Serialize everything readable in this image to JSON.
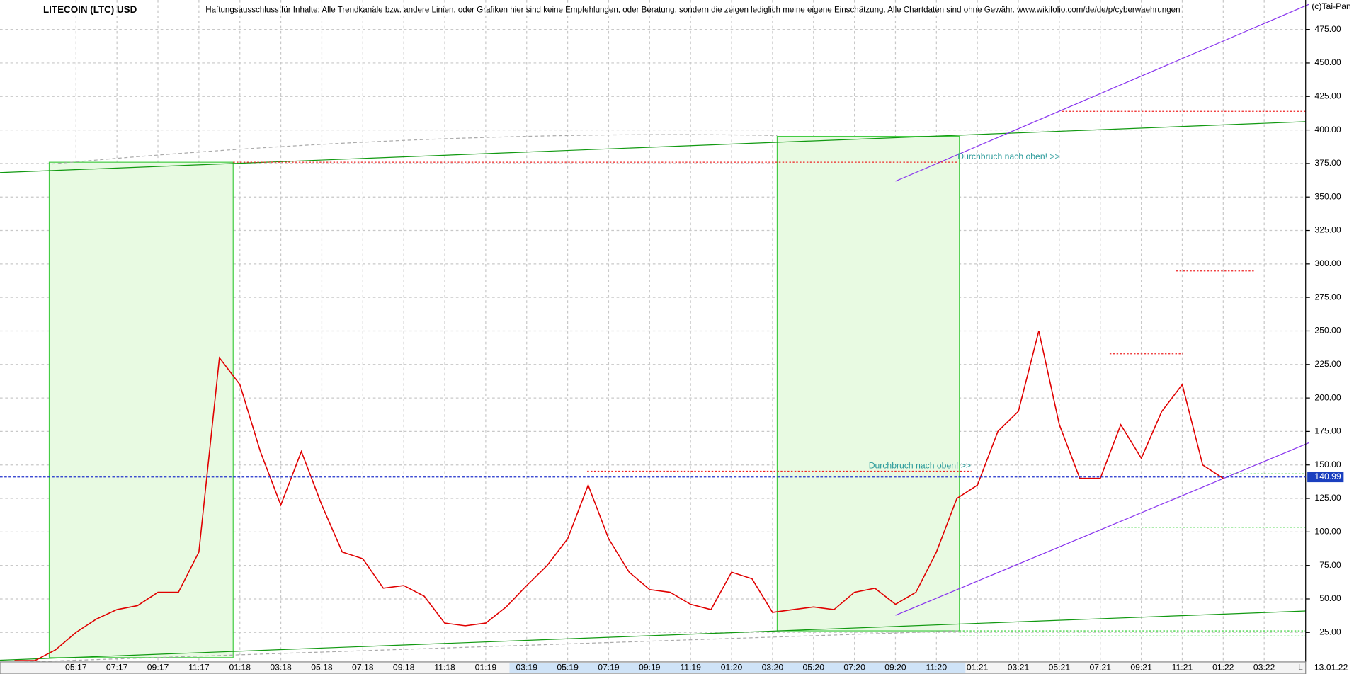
{
  "chart_data": {
    "type": "line",
    "title": "LITECOIN (LTC) USD",
    "subtitle": "Haftungsausschluss für Inhalte: Alle Trendkanäle bzw. andere Linien, oder Grafiken hier sind keine Empfehlungen, oder Beratung, sondern die zeigen lediglich meine eigene Einschätzung. Alle Chartdaten sind ohne Gewähr.  www.wikifolio.com/de/de/p/cyberwaehrungen",
    "copyright": "(c)Tai-Pan",
    "annotations": [
      "Durchbruch nach oben! >>",
      "Durchbruch nach oben! >>"
    ],
    "date_label": "13.01.22",
    "scale_label": "L",
    "last_price": 140.99,
    "color": "#e00000",
    "grid": true,
    "categories": [
      null,
      null,
      null,
      "05:17",
      null,
      "07:17",
      null,
      "09:17",
      null,
      "11:17",
      null,
      "01:18",
      null,
      "03:18",
      null,
      "05:18",
      null,
      "07:18",
      null,
      "09:18",
      null,
      "11:18",
      null,
      "01:19",
      null,
      "03:19",
      null,
      "05:19",
      null,
      "07:19",
      null,
      "09:19",
      null,
      "11:19",
      null,
      "01:20",
      null,
      "03:20",
      null,
      "05:20",
      null,
      "07:20",
      null,
      "09:20",
      null,
      "11:20",
      null,
      "01:21",
      null,
      "03:21",
      null,
      "05:21",
      null,
      "07:21",
      null,
      "09:21",
      null,
      "11:21",
      null,
      "01:22",
      null,
      "03:22"
    ],
    "values": [
      4,
      4,
      12,
      25,
      35,
      42,
      45,
      55,
      55,
      85,
      230,
      210,
      160,
      120,
      160,
      120,
      85,
      80,
      58,
      60,
      52,
      32,
      30,
      32,
      44,
      60,
      75,
      95,
      135,
      95,
      70,
      57,
      55,
      46,
      42,
      70,
      65,
      40,
      42,
      44,
      42,
      55,
      58,
      46,
      55,
      85,
      125,
      135,
      175,
      190,
      250,
      180,
      140,
      140,
      180,
      155,
      190,
      210,
      150,
      140,
      null,
      null
    ],
    "ylim": [
      3,
      497
    ],
    "yticks": [
      {
        "value": 25,
        "label": "25.00"
      },
      {
        "value": 50,
        "label": "50.00"
      },
      {
        "value": 75,
        "label": "75.00"
      },
      {
        "value": 100,
        "label": "100.00"
      },
      {
        "value": 125,
        "label": "125.00"
      },
      {
        "value": 150,
        "label": "150.00"
      },
      {
        "value": 175,
        "label": "175.00"
      },
      {
        "value": 200,
        "label": "200.00"
      },
      {
        "value": 225,
        "label": "225.00"
      },
      {
        "value": 250,
        "label": "250.00"
      },
      {
        "value": 275,
        "label": "275.00"
      },
      {
        "value": 300,
        "label": "300.00"
      },
      {
        "value": 325,
        "label": "325.00"
      },
      {
        "value": 350,
        "label": "350.00"
      },
      {
        "value": 375,
        "label": "375.00"
      },
      {
        "value": 400,
        "label": "400.00"
      },
      {
        "value": 425,
        "label": "425.00"
      },
      {
        "value": 450,
        "label": "450.00"
      },
      {
        "value": 475,
        "label": "475.00"
      }
    ]
  }
}
